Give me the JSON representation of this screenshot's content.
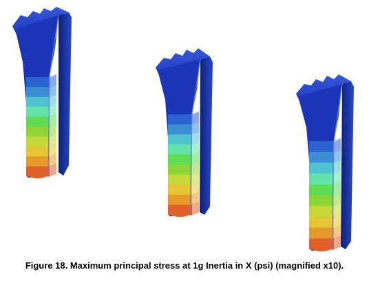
{
  "figure": {
    "caption": "Figure 18. Maximum principal stress at 1g Inertia in X (psi) (magnified x10).",
    "stress_colors": [
      "#1b3fb0",
      "#2a62d0",
      "#3c8ed4",
      "#4fc4cf",
      "#62e3a8",
      "#5fdc52",
      "#8ed638",
      "#c6d83a",
      "#e7c633",
      "#e79a2c",
      "#e0602a"
    ],
    "body_color": "#1c35b8",
    "models": [
      {
        "label": "model-left"
      },
      {
        "label": "model-center"
      },
      {
        "label": "model-right"
      }
    ]
  }
}
